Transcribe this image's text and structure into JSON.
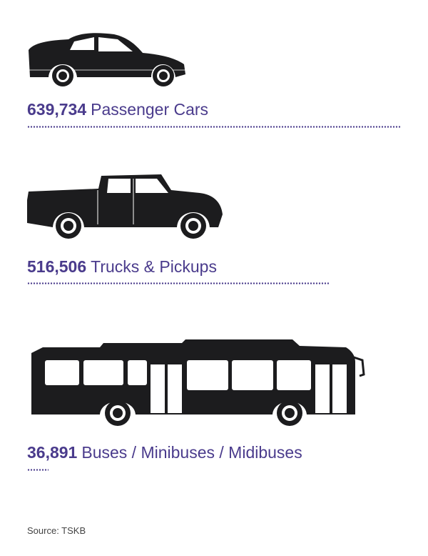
{
  "chart_data": {
    "type": "bar",
    "title": "",
    "xlabel": "",
    "ylabel": "",
    "unit": "",
    "categories": [
      "Passenger Cars",
      "Trucks & Pickups",
      "Buses / Minibuses / Midibuses"
    ],
    "values": [
      639734,
      516506,
      36891
    ],
    "value_labels": [
      "639,734",
      "516,506",
      "36,891"
    ],
    "bar_style": "dotted-line",
    "colors": {
      "accent": "#4a3b8c",
      "vehicle": "#1c1c1e"
    },
    "icons": [
      "car-icon",
      "pickup-truck-icon",
      "bus-icon"
    ]
  },
  "source": "Source: TSKB"
}
